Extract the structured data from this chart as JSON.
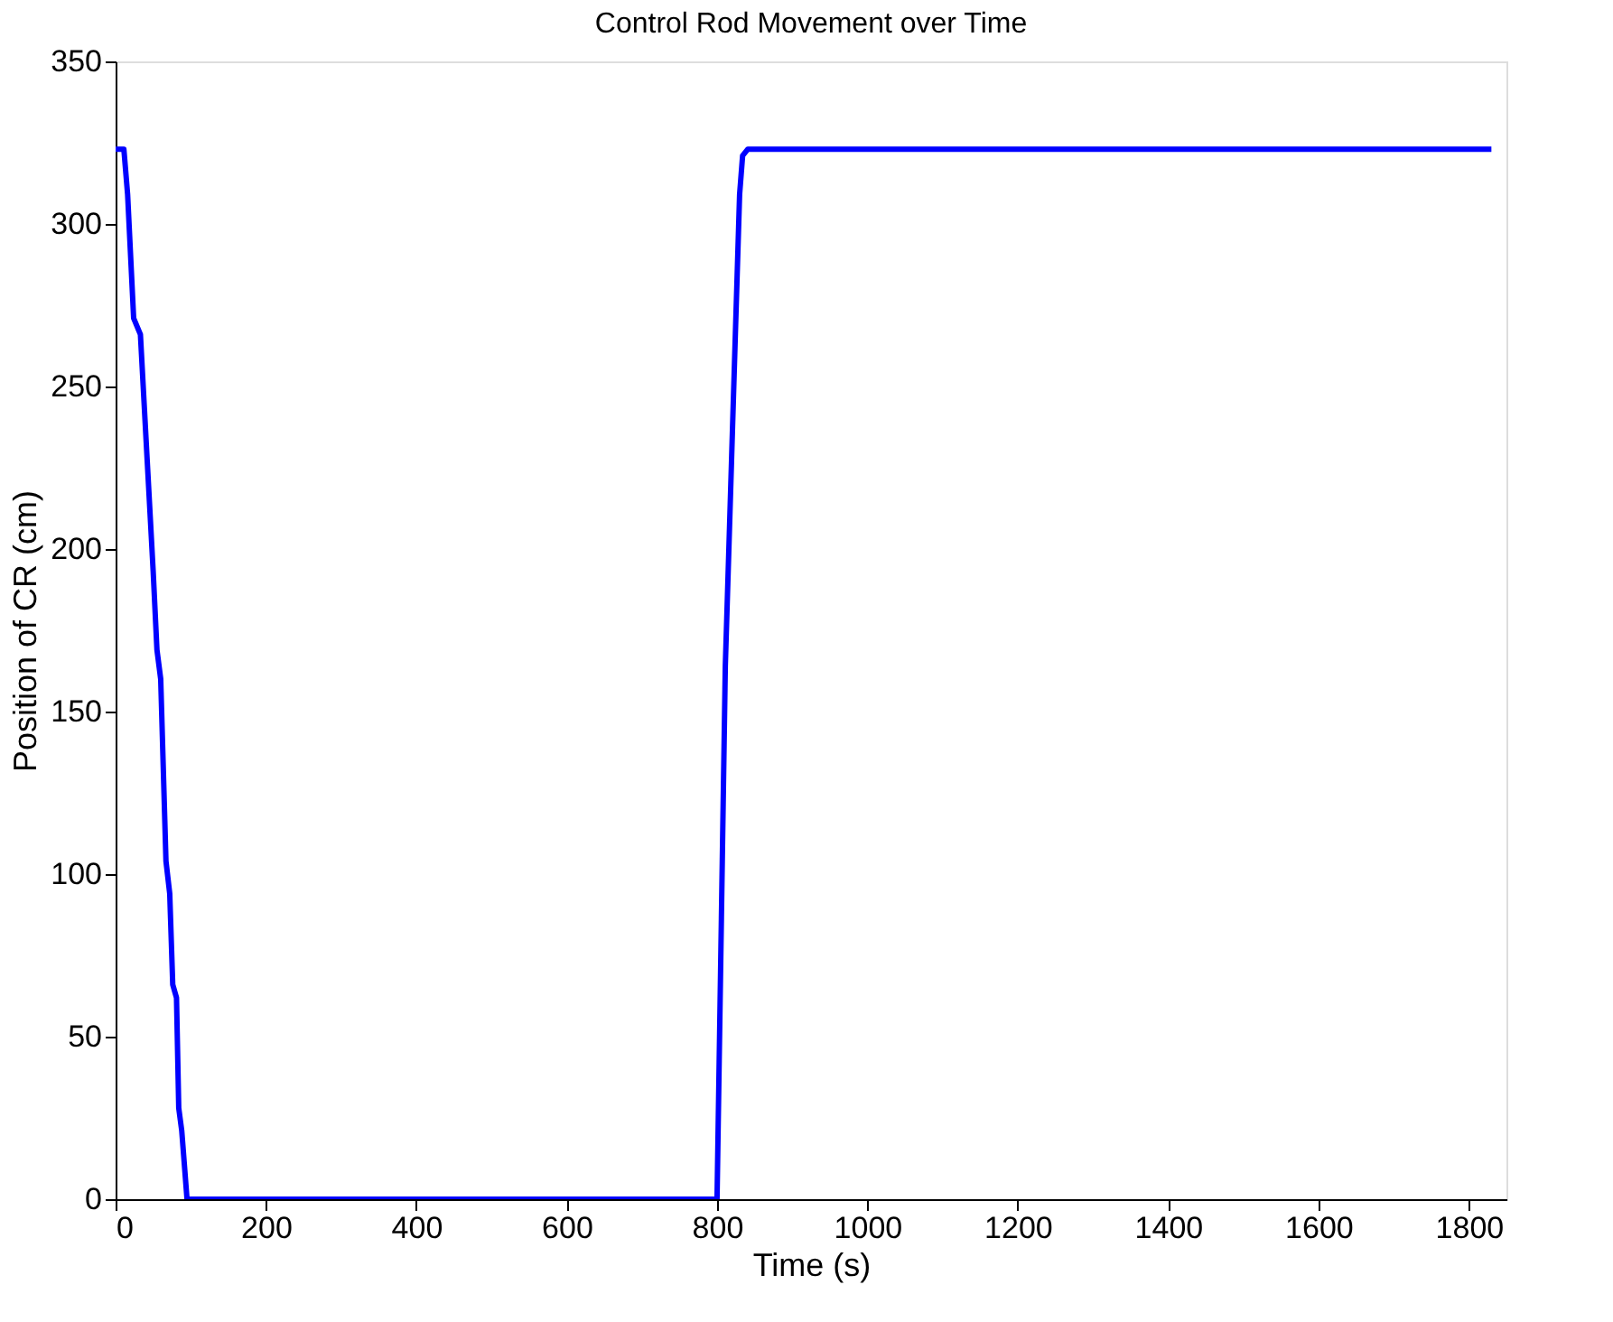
{
  "chart_data": {
    "type": "line",
    "title": "Control Rod Movement over Time",
    "xlabel": "Time (s)",
    "ylabel": "Position of CR (cm)",
    "series": [
      {
        "color": "#0000ff",
        "x": [
          0,
          11,
          16,
          24,
          33,
          50,
          55,
          60,
          67,
          72,
          76,
          81,
          84,
          88,
          95,
          800,
          811,
          830,
          834,
          841,
          1830
        ],
        "values": [
          323,
          323,
          309,
          271,
          266,
          193,
          169,
          160,
          104,
          94,
          66,
          62,
          28,
          21,
          0,
          0,
          164,
          309,
          321,
          323,
          323
        ]
      }
    ],
    "xlim": [
      0,
      1850
    ],
    "xticks": [
      0,
      200,
      400,
      600,
      800,
      1000,
      1200,
      1400,
      1600,
      1800
    ],
    "ylim": [
      0,
      350
    ],
    "yticks": [
      0,
      50,
      100,
      150,
      200,
      250,
      300,
      350
    ],
    "grid": false,
    "line_style": "solid",
    "marker": "none"
  }
}
